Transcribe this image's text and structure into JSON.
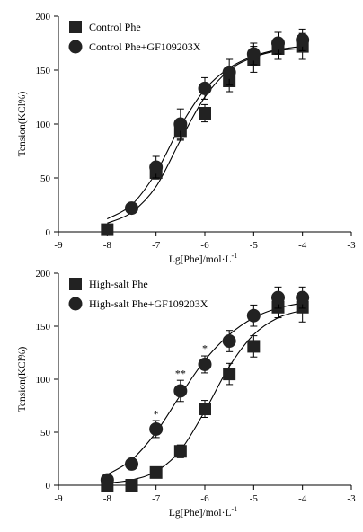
{
  "chart_data": [
    {
      "type": "scatter",
      "xlabel": "Lg[Phe]/mol·L",
      "xlabel_sup": "-1",
      "ylabel": "Tension(KCl%)",
      "xlim": [
        -9,
        -3
      ],
      "ylim": [
        0,
        200
      ],
      "x_ticks": [
        -9,
        -8,
        -7,
        -6,
        -5,
        -4,
        -3
      ],
      "y_ticks": [
        0,
        50,
        100,
        150,
        200
      ],
      "x_tick_labels": [
        "-9",
        "-8",
        "-7",
        "-6",
        "-5",
        "-4",
        "-3"
      ],
      "y_tick_labels": [
        "0",
        "50",
        "100",
        "150",
        "200"
      ],
      "grid": false,
      "legend_position": "top-left",
      "series": [
        {
          "name": "Control Phe",
          "marker": "square",
          "x": [
            -8,
            -7,
            -6.5,
            -6,
            -5.5,
            -5,
            -4.5,
            -4
          ],
          "y": [
            2,
            55,
            93,
            110,
            140,
            160,
            170,
            172
          ],
          "err": [
            0,
            6,
            8,
            8,
            10,
            12,
            10,
            12
          ],
          "fit": [
            [
              -8,
              8
            ],
            [
              -7.5,
              18
            ],
            [
              -7,
              42
            ],
            [
              -6.5,
              85
            ],
            [
              -6,
              125
            ],
            [
              -5.5,
              150
            ],
            [
              -5,
              162
            ],
            [
              -4.5,
              168
            ],
            [
              -4,
              170
            ]
          ],
          "significance": []
        },
        {
          "name": "Control Phe+GF109203X",
          "marker": "circle",
          "x": [
            -7.5,
            -7,
            -6.5,
            -6,
            -5.5,
            -5,
            -4.5,
            -4
          ],
          "y": [
            22,
            60,
            100,
            133,
            148,
            165,
            175,
            178
          ],
          "err": [
            0,
            10,
            14,
            10,
            12,
            10,
            10,
            10
          ],
          "fit": [
            [
              -8,
              12
            ],
            [
              -7.5,
              25
            ],
            [
              -7,
              55
            ],
            [
              -6.5,
              98
            ],
            [
              -6,
              132
            ],
            [
              -5.5,
              152
            ],
            [
              -5,
              163
            ],
            [
              -4.5,
              169
            ],
            [
              -4,
              172
            ]
          ],
          "significance": []
        }
      ]
    },
    {
      "type": "scatter",
      "xlabel": "Lg[Phe]/mol·L",
      "xlabel_sup": "-1",
      "ylabel": "Tension(KCl%)",
      "xlim": [
        -9,
        -3
      ],
      "ylim": [
        0,
        200
      ],
      "x_ticks": [
        -9,
        -8,
        -7,
        -6,
        -5,
        -4,
        -3
      ],
      "y_ticks": [
        0,
        50,
        100,
        150,
        200
      ],
      "x_tick_labels": [
        "-9",
        "-8",
        "-7",
        "-6",
        "-5",
        "-4",
        "-3"
      ],
      "y_tick_labels": [
        "0",
        "50",
        "100",
        "150",
        "200"
      ],
      "grid": false,
      "legend_position": "top-left",
      "series": [
        {
          "name": "High-salt Phe",
          "marker": "square",
          "x": [
            -8,
            -7.5,
            -7,
            -6.5,
            -6,
            -5.5,
            -5,
            -4.5,
            -4
          ],
          "y": [
            0,
            0,
            12,
            32,
            72,
            105,
            131,
            168,
            168
          ],
          "err": [
            0,
            0,
            0,
            6,
            8,
            10,
            10,
            10,
            14
          ],
          "fit": [
            [
              -8,
              2
            ],
            [
              -7.5,
              5
            ],
            [
              -7,
              13
            ],
            [
              -6.5,
              33
            ],
            [
              -6,
              70
            ],
            [
              -5.5,
              112
            ],
            [
              -5,
              142
            ],
            [
              -4.5,
              158
            ],
            [
              -4,
              165
            ]
          ],
          "significance": []
        },
        {
          "name": "High-salt Phe+GF109203X",
          "marker": "circle",
          "x": [
            -8,
            -7.5,
            -7,
            -6.5,
            -6,
            -5.5,
            -5,
            -4.5,
            -4
          ],
          "y": [
            5,
            20,
            53,
            89,
            114,
            136,
            160,
            177,
            177
          ],
          "err": [
            0,
            0,
            8,
            10,
            8,
            10,
            10,
            10,
            10
          ],
          "fit": [
            [
              -8,
              10
            ],
            [
              -7.5,
              24
            ],
            [
              -7,
              50
            ],
            [
              -6.5,
              85
            ],
            [
              -6,
              118
            ],
            [
              -5.5,
              142
            ],
            [
              -5,
              158
            ],
            [
              -4.5,
              167
            ],
            [
              -4,
              172
            ]
          ],
          "significance": [
            {
              "x": -7,
              "y": 64,
              "label": "*"
            },
            {
              "x": -6.5,
              "y": 102,
              "label": "**"
            },
            {
              "x": -6,
              "y": 126,
              "label": "*"
            }
          ]
        }
      ]
    }
  ]
}
